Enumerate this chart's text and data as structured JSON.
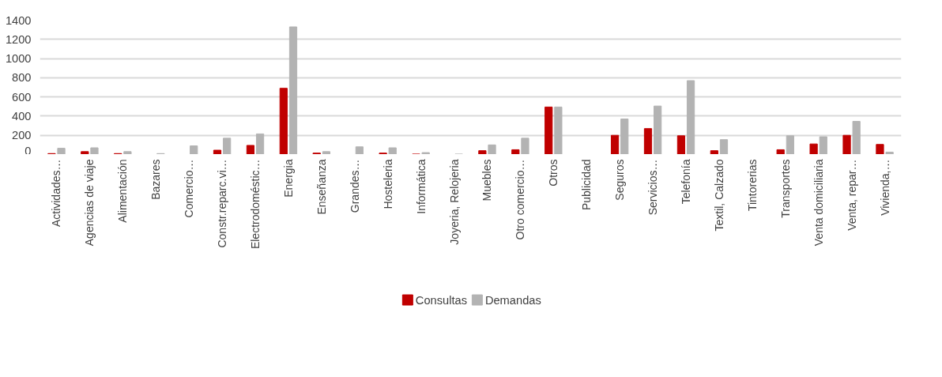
{
  "chart_data": {
    "type": "bar",
    "categories": [
      "Actividades…",
      "Agencias de viaje",
      "Alimentación",
      "Bazares",
      "Comercio…",
      "Constr.reparc.vi…",
      "Electrodoméstic…",
      "Energia",
      "Enseñanza",
      "Grandes…",
      "Hosteleria",
      "Informática",
      "Joyeria, Relojeria",
      "Muebles",
      "Otro comercio…",
      "Otros",
      "Publicidad",
      "Seguros",
      "Servicios…",
      "Telefonía",
      "Textil, Calzado",
      "Tintorerias",
      "Transportes",
      "Venta domiciliaria",
      "Venta, repar…",
      "Vivienda,…"
    ],
    "series": [
      {
        "name": "Consultas",
        "color": "#c00000",
        "values": [
          10,
          30,
          10,
          0,
          0,
          45,
          95,
          690,
          15,
          0,
          15,
          5,
          0,
          40,
          50,
          495,
          0,
          200,
          270,
          195,
          40,
          0,
          50,
          110,
          200,
          105
        ]
      },
      {
        "name": "Demandas",
        "color": "#b3b3b3",
        "values": [
          65,
          70,
          30,
          10,
          90,
          170,
          215,
          1330,
          30,
          80,
          70,
          20,
          5,
          100,
          170,
          495,
          0,
          370,
          505,
          770,
          155,
          0,
          195,
          185,
          345,
          25
        ]
      }
    ],
    "ylim": [
      0,
      1400
    ],
    "yticks": [
      0,
      200,
      400,
      600,
      800,
      1000,
      1200,
      1400
    ],
    "grid": "y",
    "legend": "bottom"
  }
}
